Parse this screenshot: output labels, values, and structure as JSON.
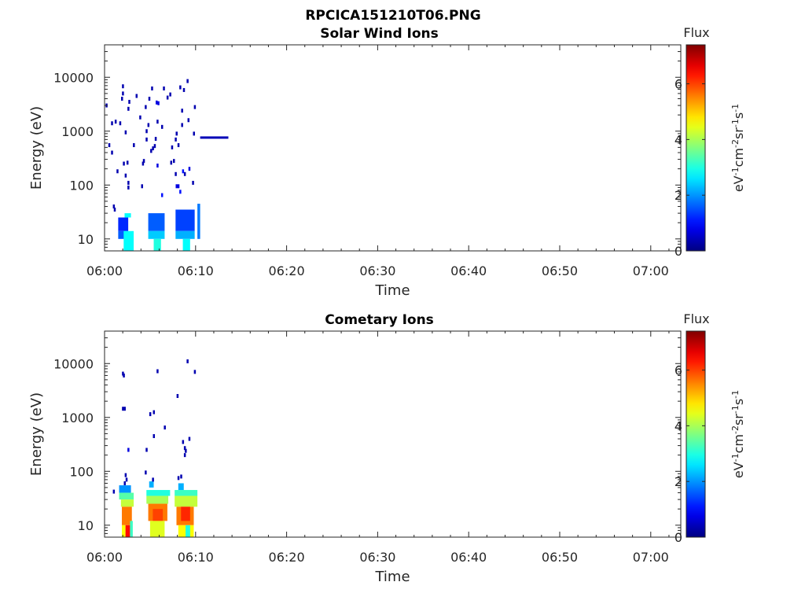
{
  "figure_title": "RPCICA151210T06.PNG",
  "chart_data": [
    {
      "type": "heatmap",
      "title": "Solar Wind Ions",
      "xlabel": "Time",
      "ylabel": "Energy (eV)",
      "x_ticks": [
        "06:00",
        "06:10",
        "06:20",
        "06:30",
        "06:40",
        "06:50",
        "07:00"
      ],
      "xlim_minutes": [
        0,
        63.3
      ],
      "y_ticks": [
        "10",
        "100",
        "1000",
        "10000"
      ],
      "y_scale": "log",
      "ylim": [
        6,
        40000
      ],
      "colorbar": {
        "title": "Flux",
        "label": "eV-1cm-2sr-1s-1",
        "ticks": [
          "0",
          "2",
          "4",
          "6"
        ],
        "range": [
          0,
          7.4
        ],
        "colormap": "jet"
      },
      "points": [
        [
          0.2,
          3000,
          1
        ],
        [
          0.5,
          550,
          1
        ],
        [
          0.8,
          1400,
          1
        ],
        [
          0.8,
          400,
          1
        ],
        [
          1.0,
          40,
          1
        ],
        [
          1.1,
          35,
          1
        ],
        [
          1.2,
          1500,
          1
        ],
        [
          1.4,
          180,
          1
        ],
        [
          1.7,
          1400,
          1
        ],
        [
          1.9,
          4000,
          1
        ],
        [
          2.0,
          5000,
          1
        ],
        [
          2.0,
          6800,
          1
        ],
        [
          2.1,
          250,
          1
        ],
        [
          2.3,
          950,
          1
        ],
        [
          2.3,
          150,
          1
        ],
        [
          2.5,
          260,
          1
        ],
        [
          2.6,
          2600,
          1
        ],
        [
          2.7,
          3500,
          1
        ],
        [
          2.6,
          110,
          1
        ],
        [
          2.6,
          90,
          1
        ],
        [
          3.2,
          550,
          1
        ],
        [
          3.5,
          4500,
          1
        ],
        [
          3.9,
          1800,
          1
        ],
        [
          4.1,
          95,
          1
        ],
        [
          4.2,
          250,
          1
        ],
        [
          4.3,
          280,
          1
        ],
        [
          4.5,
          2800,
          1
        ],
        [
          4.6,
          700,
          1
        ],
        [
          4.6,
          1000,
          1
        ],
        [
          4.8,
          1300,
          1
        ],
        [
          4.9,
          4000,
          1
        ],
        [
          5.1,
          430,
          1
        ],
        [
          5.2,
          6200,
          1
        ],
        [
          5.3,
          480,
          1
        ],
        [
          5.5,
          530,
          1
        ],
        [
          5.6,
          720,
          1
        ],
        [
          5.8,
          1500,
          1
        ],
        [
          5.7,
          3400,
          2
        ],
        [
          5.9,
          3300,
          2
        ],
        [
          5.8,
          230,
          2
        ],
        [
          6.3,
          1200,
          1
        ],
        [
          6.5,
          6200,
          1
        ],
        [
          6.9,
          4200,
          1
        ],
        [
          7.2,
          4800,
          1
        ],
        [
          7.3,
          260,
          1
        ],
        [
          7.4,
          500,
          1
        ],
        [
          7.6,
          280,
          1
        ],
        [
          7.9,
          900,
          1
        ],
        [
          7.8,
          700,
          1
        ],
        [
          8.1,
          550,
          1
        ],
        [
          8.3,
          6500,
          1
        ],
        [
          8.5,
          1300,
          1
        ],
        [
          8.5,
          2400,
          1
        ],
        [
          8.6,
          180,
          3
        ],
        [
          8.7,
          5800,
          1
        ],
        [
          8.8,
          160,
          1
        ],
        [
          9.1,
          8500,
          1
        ],
        [
          9.2,
          1600,
          1
        ],
        [
          9.3,
          200,
          2
        ],
        [
          9.7,
          110,
          1
        ],
        [
          9.9,
          2800,
          1
        ],
        [
          9.8,
          900,
          1
        ],
        [
          7.8,
          160,
          1
        ],
        [
          7.9,
          95,
          2
        ],
        [
          8.1,
          95,
          2
        ],
        [
          8.3,
          75,
          3
        ],
        [
          6.3,
          65,
          3
        ]
      ],
      "segments": [
        {
          "t": [
            10.5,
            13.6
          ],
          "energy": 760,
          "value": 0.4
        }
      ],
      "blocks": [
        {
          "t": [
            1.5,
            2.6
          ],
          "e": [
            14,
            25
          ],
          "value": 1.2
        },
        {
          "t": [
            1.5,
            2.6
          ],
          "e": [
            10,
            14
          ],
          "value": 1.6
        },
        {
          "t": [
            2.1,
            3.2
          ],
          "e": [
            6,
            14
          ],
          "value": 2.8
        },
        {
          "t": [
            2.2,
            2.9
          ],
          "e": [
            25,
            30
          ],
          "value": 2.8
        },
        {
          "t": [
            4.8,
            6.6
          ],
          "e": [
            14,
            30
          ],
          "value": 1.6
        },
        {
          "t": [
            4.8,
            6.6
          ],
          "e": [
            10,
            14
          ],
          "value": 2.4
        },
        {
          "t": [
            5.4,
            6.2
          ],
          "e": [
            6,
            10
          ],
          "value": 3.0
        },
        {
          "t": [
            7.8,
            9.9
          ],
          "e": [
            14,
            35
          ],
          "value": 1.4
        },
        {
          "t": [
            7.8,
            9.9
          ],
          "e": [
            10,
            14
          ],
          "value": 2.2
        },
        {
          "t": [
            8.6,
            9.4
          ],
          "e": [
            6,
            10
          ],
          "value": 2.8
        },
        {
          "t": [
            10.2,
            10.5
          ],
          "e": [
            10,
            45
          ],
          "value": 1.8
        }
      ]
    },
    {
      "type": "heatmap",
      "title": "Cometary Ions",
      "xlabel": "Time",
      "ylabel": "Energy (eV)",
      "x_ticks": [
        "06:00",
        "06:10",
        "06:20",
        "06:30",
        "06:40",
        "06:50",
        "07:00"
      ],
      "xlim_minutes": [
        0,
        63.3
      ],
      "y_ticks": [
        "10",
        "100",
        "1000",
        "10000"
      ],
      "y_scale": "log",
      "ylim": [
        6,
        40000
      ],
      "colorbar": {
        "title": "Flux",
        "label": "eV-1cm-2sr-1s-1",
        "ticks": [
          "0",
          "2",
          "4",
          "6"
        ],
        "range": [
          0,
          7.4
        ],
        "colormap": "jet"
      },
      "points": [
        [
          1.0,
          42,
          1
        ],
        [
          2.0,
          6500,
          1
        ],
        [
          2.1,
          6000,
          1
        ],
        [
          2.0,
          1450,
          1
        ],
        [
          2.2,
          1450,
          1
        ],
        [
          2.6,
          250,
          2
        ],
        [
          4.6,
          250,
          1
        ],
        [
          4.5,
          95,
          1
        ],
        [
          5.0,
          1150,
          1
        ],
        [
          5.4,
          1250,
          1
        ],
        [
          5.4,
          450,
          1
        ],
        [
          5.8,
          7200,
          1
        ],
        [
          6.6,
          650,
          1
        ],
        [
          8.0,
          2500,
          1
        ],
        [
          8.6,
          350,
          1
        ],
        [
          8.8,
          270,
          1
        ],
        [
          8.9,
          240,
          1
        ],
        [
          8.8,
          200,
          1
        ],
        [
          9.1,
          11000,
          1
        ],
        [
          9.3,
          400,
          1
        ],
        [
          9.9,
          7000,
          1
        ],
        [
          2.2,
          60,
          1
        ],
        [
          2.4,
          70,
          1
        ],
        [
          2.3,
          85,
          1
        ],
        [
          5.3,
          70,
          1
        ],
        [
          8.1,
          75,
          1
        ],
        [
          8.4,
          80,
          1
        ]
      ],
      "segments": [],
      "blocks": [
        {
          "t": [
            1.6,
            2.9
          ],
          "e": [
            40,
            55
          ],
          "value": 2.0
        },
        {
          "t": [
            1.6,
            3.2
          ],
          "e": [
            30,
            40
          ],
          "value": 3.4
        },
        {
          "t": [
            1.8,
            3.2
          ],
          "e": [
            22,
            30
          ],
          "value": 4.2
        },
        {
          "t": [
            1.9,
            3.0
          ],
          "e": [
            10,
            22
          ],
          "value": 5.6
        },
        {
          "t": [
            1.9,
            2.3
          ],
          "e": [
            6,
            10
          ],
          "value": 4.6
        },
        {
          "t": [
            2.3,
            2.8
          ],
          "e": [
            6,
            10
          ],
          "value": 6.4
        },
        {
          "t": [
            2.8,
            3.1
          ],
          "e": [
            6,
            12
          ],
          "value": 3.2
        },
        {
          "t": [
            4.6,
            7.2
          ],
          "e": [
            35,
            45
          ],
          "value": 3.0
        },
        {
          "t": [
            4.6,
            7.0
          ],
          "e": [
            25,
            35
          ],
          "value": 4.0
        },
        {
          "t": [
            4.8,
            6.9
          ],
          "e": [
            12,
            25
          ],
          "value": 5.6
        },
        {
          "t": [
            5.3,
            6.4
          ],
          "e": [
            12,
            20
          ],
          "value": 6.0
        },
        {
          "t": [
            5.0,
            6.6
          ],
          "e": [
            6,
            12
          ],
          "value": 4.4
        },
        {
          "t": [
            4.9,
            5.4
          ],
          "e": [
            50,
            65
          ],
          "value": 2.2
        },
        {
          "t": [
            7.7,
            10.2
          ],
          "e": [
            35,
            45
          ],
          "value": 3.2
        },
        {
          "t": [
            7.7,
            10.2
          ],
          "e": [
            22,
            35
          ],
          "value": 4.2
        },
        {
          "t": [
            7.9,
            9.8
          ],
          "e": [
            10,
            22
          ],
          "value": 5.6
        },
        {
          "t": [
            8.4,
            9.4
          ],
          "e": [
            12,
            22
          ],
          "value": 6.2
        },
        {
          "t": [
            8.1,
            9.8
          ],
          "e": [
            6,
            10
          ],
          "value": 4.6
        },
        {
          "t": [
            8.9,
            9.4
          ],
          "e": [
            6,
            10
          ],
          "value": 3.0
        },
        {
          "t": [
            8.1,
            8.7
          ],
          "e": [
            45,
            60
          ],
          "value": 2.2
        }
      ]
    }
  ]
}
